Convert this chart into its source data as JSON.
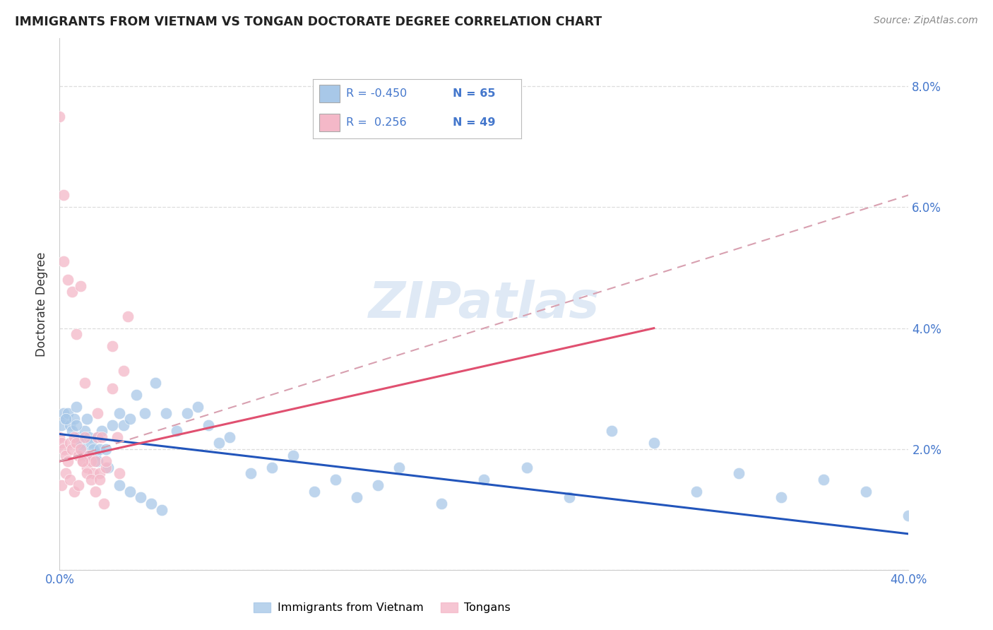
{
  "title": "IMMIGRANTS FROM VIETNAM VS TONGAN DOCTORATE DEGREE CORRELATION CHART",
  "source": "Source: ZipAtlas.com",
  "ylabel": "Doctorate Degree",
  "xlim": [
    0.0,
    0.4
  ],
  "ylim": [
    0.0,
    0.088
  ],
  "xticks": [
    0.0,
    0.4
  ],
  "xtick_labels": [
    "0.0%",
    "40.0%"
  ],
  "yticks_right": [
    0.0,
    0.02,
    0.04,
    0.06,
    0.08
  ],
  "ytick_labels_right": [
    "",
    "2.0%",
    "4.0%",
    "6.0%",
    "8.0%"
  ],
  "blue_color": "#a8c8e8",
  "pink_color": "#f4b8c8",
  "blue_line_color": "#2255bb",
  "pink_line_color": "#e05070",
  "pink_dashed_color": "#d8a0b0",
  "watermark": "ZIPatlas",
  "blue_scatter_x": [
    0.001,
    0.002,
    0.003,
    0.004,
    0.005,
    0.006,
    0.007,
    0.008,
    0.009,
    0.01,
    0.011,
    0.012,
    0.013,
    0.014,
    0.015,
    0.016,
    0.017,
    0.018,
    0.019,
    0.02,
    0.022,
    0.025,
    0.028,
    0.03,
    0.033,
    0.036,
    0.04,
    0.045,
    0.05,
    0.055,
    0.06,
    0.065,
    0.07,
    0.075,
    0.08,
    0.09,
    0.1,
    0.11,
    0.12,
    0.13,
    0.14,
    0.15,
    0.16,
    0.18,
    0.2,
    0.22,
    0.24,
    0.26,
    0.28,
    0.3,
    0.32,
    0.34,
    0.36,
    0.38,
    0.4,
    0.003,
    0.008,
    0.013,
    0.018,
    0.023,
    0.028,
    0.033,
    0.038,
    0.043,
    0.048
  ],
  "blue_scatter_y": [
    0.024,
    0.026,
    0.025,
    0.026,
    0.024,
    0.023,
    0.025,
    0.027,
    0.022,
    0.021,
    0.02,
    0.023,
    0.025,
    0.022,
    0.021,
    0.02,
    0.019,
    0.022,
    0.02,
    0.023,
    0.02,
    0.024,
    0.026,
    0.024,
    0.025,
    0.029,
    0.026,
    0.031,
    0.026,
    0.023,
    0.026,
    0.027,
    0.024,
    0.021,
    0.022,
    0.016,
    0.017,
    0.019,
    0.013,
    0.015,
    0.012,
    0.014,
    0.017,
    0.011,
    0.015,
    0.017,
    0.012,
    0.023,
    0.021,
    0.013,
    0.016,
    0.012,
    0.015,
    0.013,
    0.009,
    0.025,
    0.024,
    0.019,
    0.018,
    0.017,
    0.014,
    0.013,
    0.012,
    0.011,
    0.01
  ],
  "pink_scatter_x": [
    0.0,
    0.001,
    0.002,
    0.003,
    0.004,
    0.005,
    0.006,
    0.007,
    0.008,
    0.009,
    0.01,
    0.011,
    0.012,
    0.013,
    0.014,
    0.015,
    0.016,
    0.017,
    0.018,
    0.019,
    0.02,
    0.022,
    0.025,
    0.027,
    0.001,
    0.003,
    0.005,
    0.007,
    0.009,
    0.011,
    0.013,
    0.015,
    0.017,
    0.019,
    0.021,
    0.0,
    0.002,
    0.004,
    0.006,
    0.008,
    0.012,
    0.018,
    0.022,
    0.028,
    0.002,
    0.01,
    0.025,
    0.03,
    0.032
  ],
  "pink_scatter_y": [
    0.022,
    0.021,
    0.02,
    0.019,
    0.018,
    0.021,
    0.02,
    0.022,
    0.021,
    0.019,
    0.02,
    0.018,
    0.022,
    0.017,
    0.019,
    0.018,
    0.016,
    0.018,
    0.022,
    0.016,
    0.022,
    0.017,
    0.03,
    0.022,
    0.014,
    0.016,
    0.015,
    0.013,
    0.014,
    0.018,
    0.016,
    0.015,
    0.013,
    0.015,
    0.011,
    0.075,
    0.051,
    0.048,
    0.046,
    0.039,
    0.031,
    0.026,
    0.018,
    0.016,
    0.062,
    0.047,
    0.037,
    0.033,
    0.042
  ],
  "blue_trend_x": [
    0.0,
    0.4
  ],
  "blue_trend_y": [
    0.0225,
    0.006
  ],
  "pink_solid_trend_x": [
    0.0,
    0.28
  ],
  "pink_solid_trend_y": [
    0.018,
    0.04
  ],
  "pink_dashed_trend_x": [
    0.0,
    0.4
  ],
  "pink_dashed_trend_y": [
    0.018,
    0.062
  ],
  "legend_blue_r": "R = -0.450",
  "legend_blue_n": "N = 65",
  "legend_pink_r": "R =  0.256",
  "legend_pink_n": "N = 49",
  "text_color_dark": "#333333",
  "text_color_blue": "#4477cc",
  "grid_color": "#dddddd",
  "axis_color": "#cccccc"
}
